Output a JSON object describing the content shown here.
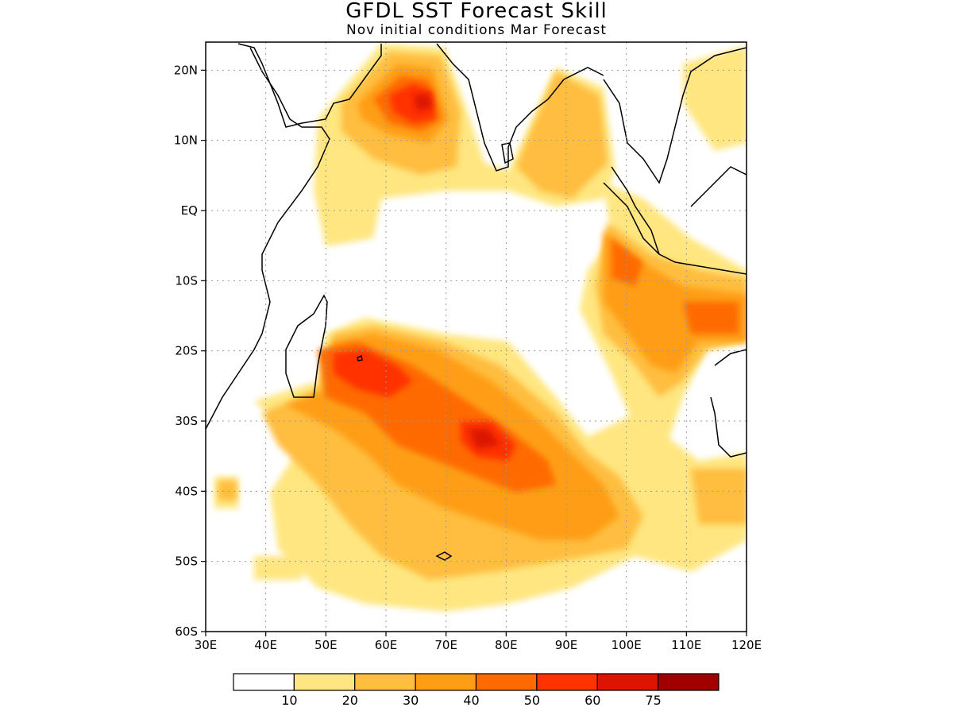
{
  "title": "GFDL SST Forecast Skill",
  "subtitle": "Nov initial conditions  Mar Forecast",
  "map": {
    "lon_range": [
      30,
      120
    ],
    "lat_range": [
      -60,
      24
    ],
    "lon_ticks": [
      {
        "value": 30,
        "label": "30E"
      },
      {
        "value": 40,
        "label": "40E"
      },
      {
        "value": 50,
        "label": "50E"
      },
      {
        "value": 60,
        "label": "60E"
      },
      {
        "value": 70,
        "label": "70E"
      },
      {
        "value": 80,
        "label": "80E"
      },
      {
        "value": 90,
        "label": "90E"
      },
      {
        "value": 100,
        "label": "100E"
      },
      {
        "value": 110,
        "label": "110E"
      },
      {
        "value": 120,
        "label": "120E"
      }
    ],
    "lat_ticks": [
      {
        "value": 20,
        "label": "20N"
      },
      {
        "value": 10,
        "label": "10N"
      },
      {
        "value": 0,
        "label": "EQ"
      },
      {
        "value": -10,
        "label": "10S"
      },
      {
        "value": -20,
        "label": "20S"
      },
      {
        "value": -30,
        "label": "30S"
      },
      {
        "value": -40,
        "label": "40S"
      },
      {
        "value": -50,
        "label": "50S"
      },
      {
        "value": -60,
        "label": "60S"
      }
    ],
    "grid": true
  },
  "colorbar": {
    "colors": [
      "#ffffff",
      "#ffe680",
      "#ffbe40",
      "#ff9e14",
      "#ff6a00",
      "#ff3200",
      "#dc1400",
      "#a00000"
    ],
    "labels": [
      "10",
      "20",
      "30",
      "40",
      "50",
      "60",
      "75"
    ]
  }
}
